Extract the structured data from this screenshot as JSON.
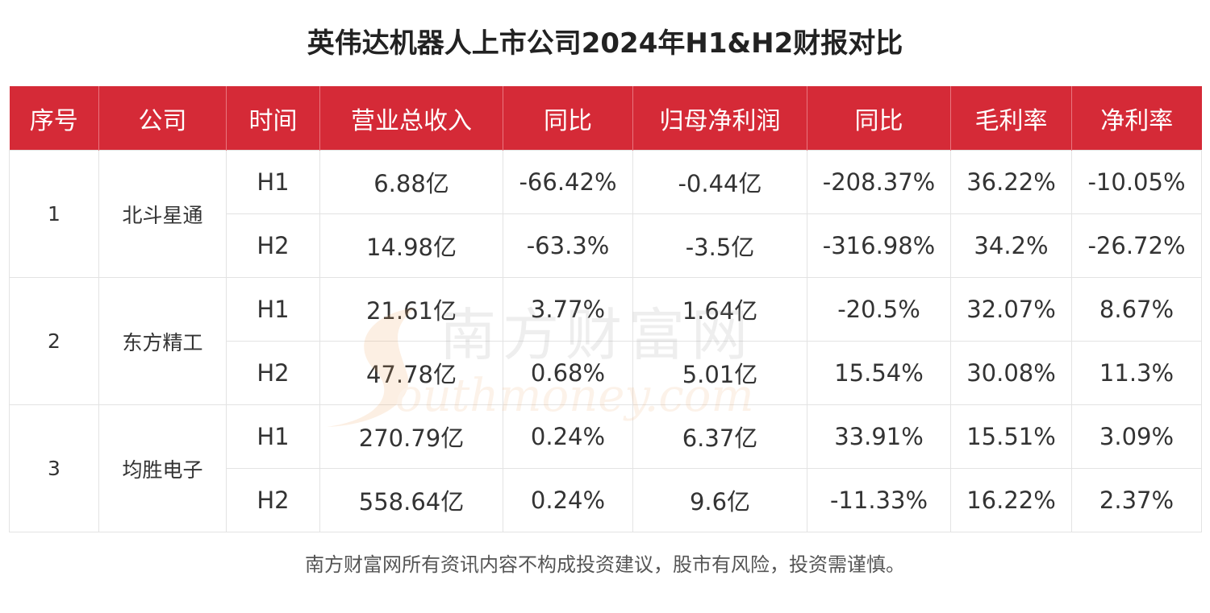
{
  "title": "英伟达机器人上市公司2024年H1&H2财报对比",
  "headers": [
    "序号",
    "公司",
    "时间",
    "营业总收入",
    "同比",
    "归母净利润",
    "同比",
    "毛利率",
    "净利率"
  ],
  "companies": [
    {
      "index": "1",
      "name": "北斗星通",
      "rows": [
        {
          "period": "H1",
          "revenue": "6.88亿",
          "revenue_yoy": "-66.42%",
          "net_profit": "-0.44亿",
          "profit_yoy": "-208.37%",
          "gross_margin": "36.22%",
          "net_margin": "-10.05%"
        },
        {
          "period": "H2",
          "revenue": "14.98亿",
          "revenue_yoy": "-63.3%",
          "net_profit": "-3.5亿",
          "profit_yoy": "-316.98%",
          "gross_margin": "34.2%",
          "net_margin": "-26.72%"
        }
      ]
    },
    {
      "index": "2",
      "name": "东方精工",
      "rows": [
        {
          "period": "H1",
          "revenue": "21.61亿",
          "revenue_yoy": "3.77%",
          "net_profit": "1.64亿",
          "profit_yoy": "-20.5%",
          "gross_margin": "32.07%",
          "net_margin": "8.67%"
        },
        {
          "period": "H2",
          "revenue": "47.78亿",
          "revenue_yoy": "0.68%",
          "net_profit": "5.01亿",
          "profit_yoy": "15.54%",
          "gross_margin": "30.08%",
          "net_margin": "11.3%"
        }
      ]
    },
    {
      "index": "3",
      "name": "均胜电子",
      "rows": [
        {
          "period": "H1",
          "revenue": "270.79亿",
          "revenue_yoy": "0.24%",
          "net_profit": "6.37亿",
          "profit_yoy": "33.91%",
          "gross_margin": "15.51%",
          "net_margin": "3.09%"
        },
        {
          "period": "H2",
          "revenue": "558.64亿",
          "revenue_yoy": "0.24%",
          "net_profit": "9.6亿",
          "profit_yoy": "-11.33%",
          "gross_margin": "16.22%",
          "net_margin": "2.37%"
        }
      ]
    }
  ],
  "watermark": {
    "cn": "南方财富网",
    "en": "outhmoney.com",
    "colors": {
      "text": "#b9b9b9",
      "logo": "#f0a25a"
    }
  },
  "footer": "南方财富网所有资讯内容不构成投资建议，股市有风险，投资需谨慎。",
  "colors": {
    "header_bg": "#d52a37",
    "header_text": "#ffffff",
    "border": "#e3e3e3"
  }
}
